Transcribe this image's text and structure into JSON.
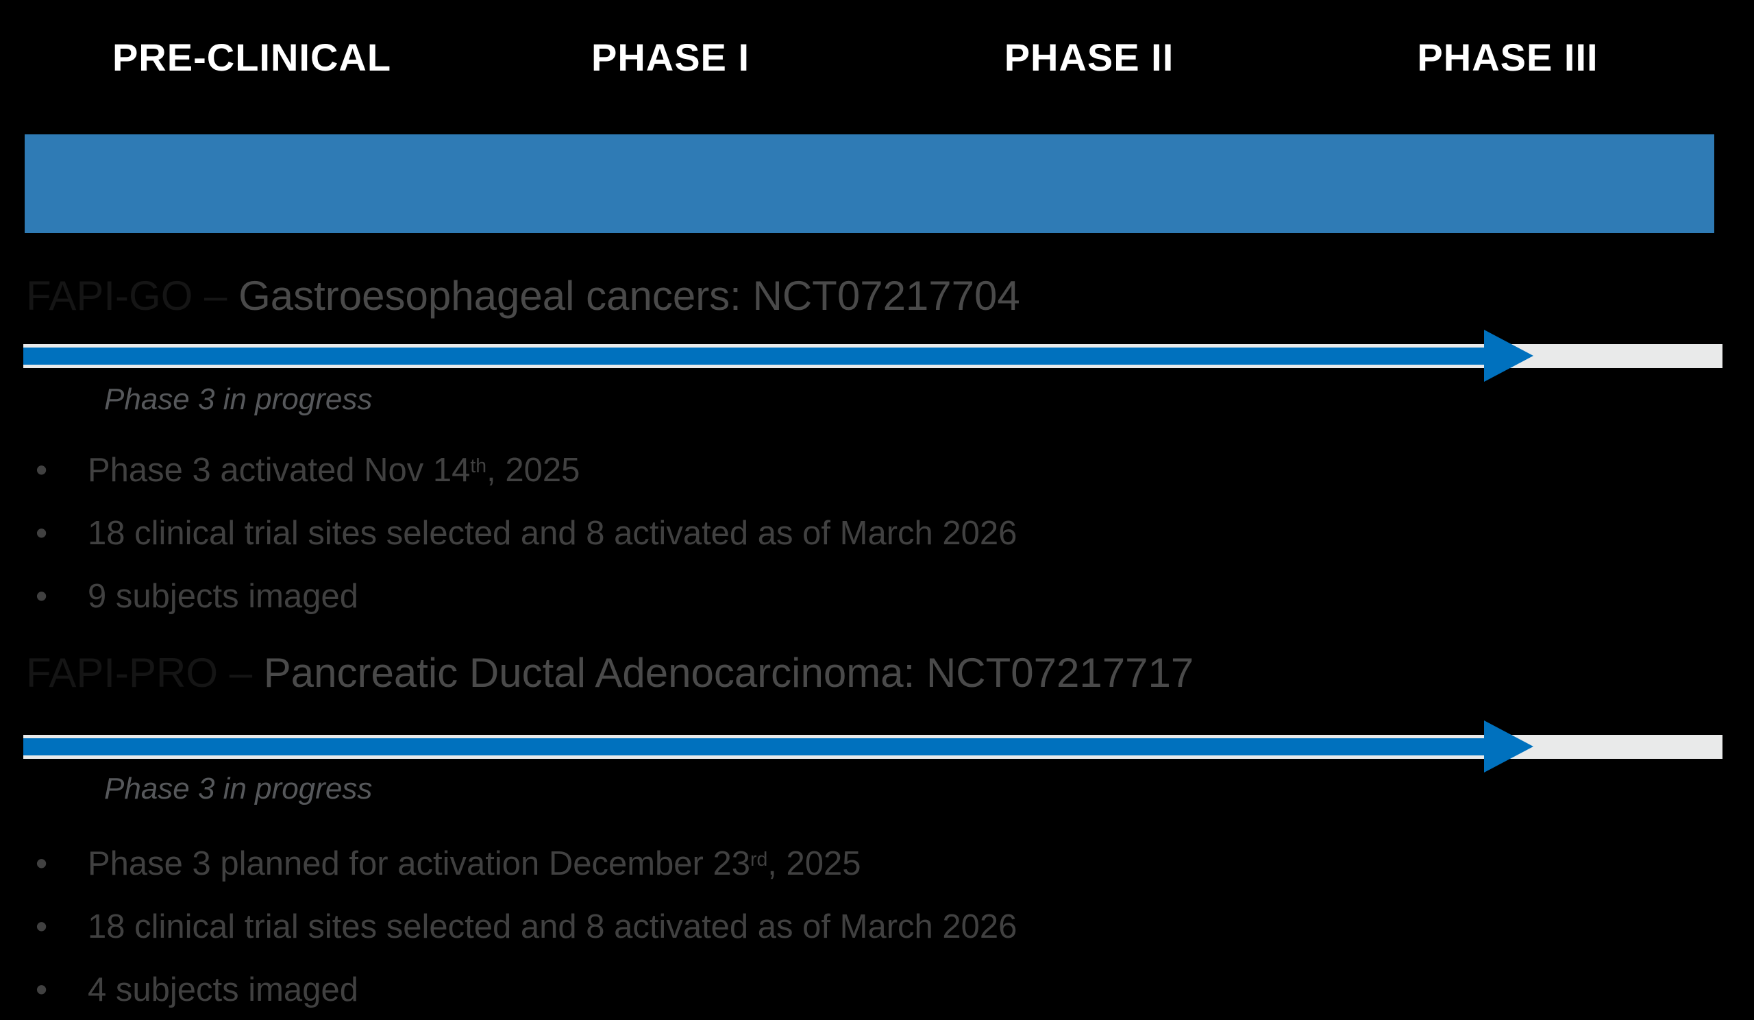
{
  "colors": {
    "background": "#000000",
    "header_bar_blue": "#2F7BB5",
    "arrow_blue": "#0071BE",
    "arrow_track_gray": "#E9EAEA",
    "phase_label_white": "#FFFFFF",
    "program_dark": "#151515",
    "title_gray": "#4A4A4A",
    "status_gray": "#56585B",
    "bullet_gray": "#414141"
  },
  "header": {
    "phases": [
      "PRE-CLINICAL",
      "PHASE I",
      "PHASE II",
      "PHASE III"
    ]
  },
  "bullet_marker": "•",
  "sections": [
    {
      "program": "FAPI-GO – ",
      "title": "Gastroesophageal cancers: NCT07217704",
      "status": "Phase 3 in progress",
      "bullets": [
        {
          "pre": "Phase 3 activated Nov 14",
          "sup": "th",
          "post": ", 2025"
        },
        {
          "pre": "18 clinical trial sites selected and 8 activated as of March 2026",
          "sup": "",
          "post": ""
        },
        {
          "pre": "9 subjects imaged",
          "sup": "",
          "post": ""
        }
      ]
    },
    {
      "program": "FAPI-PRO – ",
      "title": "Pancreatic Ductal Adenocarcinoma: NCT07217717",
      "status": "Phase 3 in progress",
      "bullets": [
        {
          "pre": "Phase 3 planned for activation December 23",
          "sup": "rd",
          "post": ", 2025"
        },
        {
          "pre": "18 clinical trial sites selected and 8 activated as of March 2026",
          "sup": "",
          "post": ""
        },
        {
          "pre": "4 subjects imaged",
          "sup": "",
          "post": ""
        }
      ]
    }
  ]
}
